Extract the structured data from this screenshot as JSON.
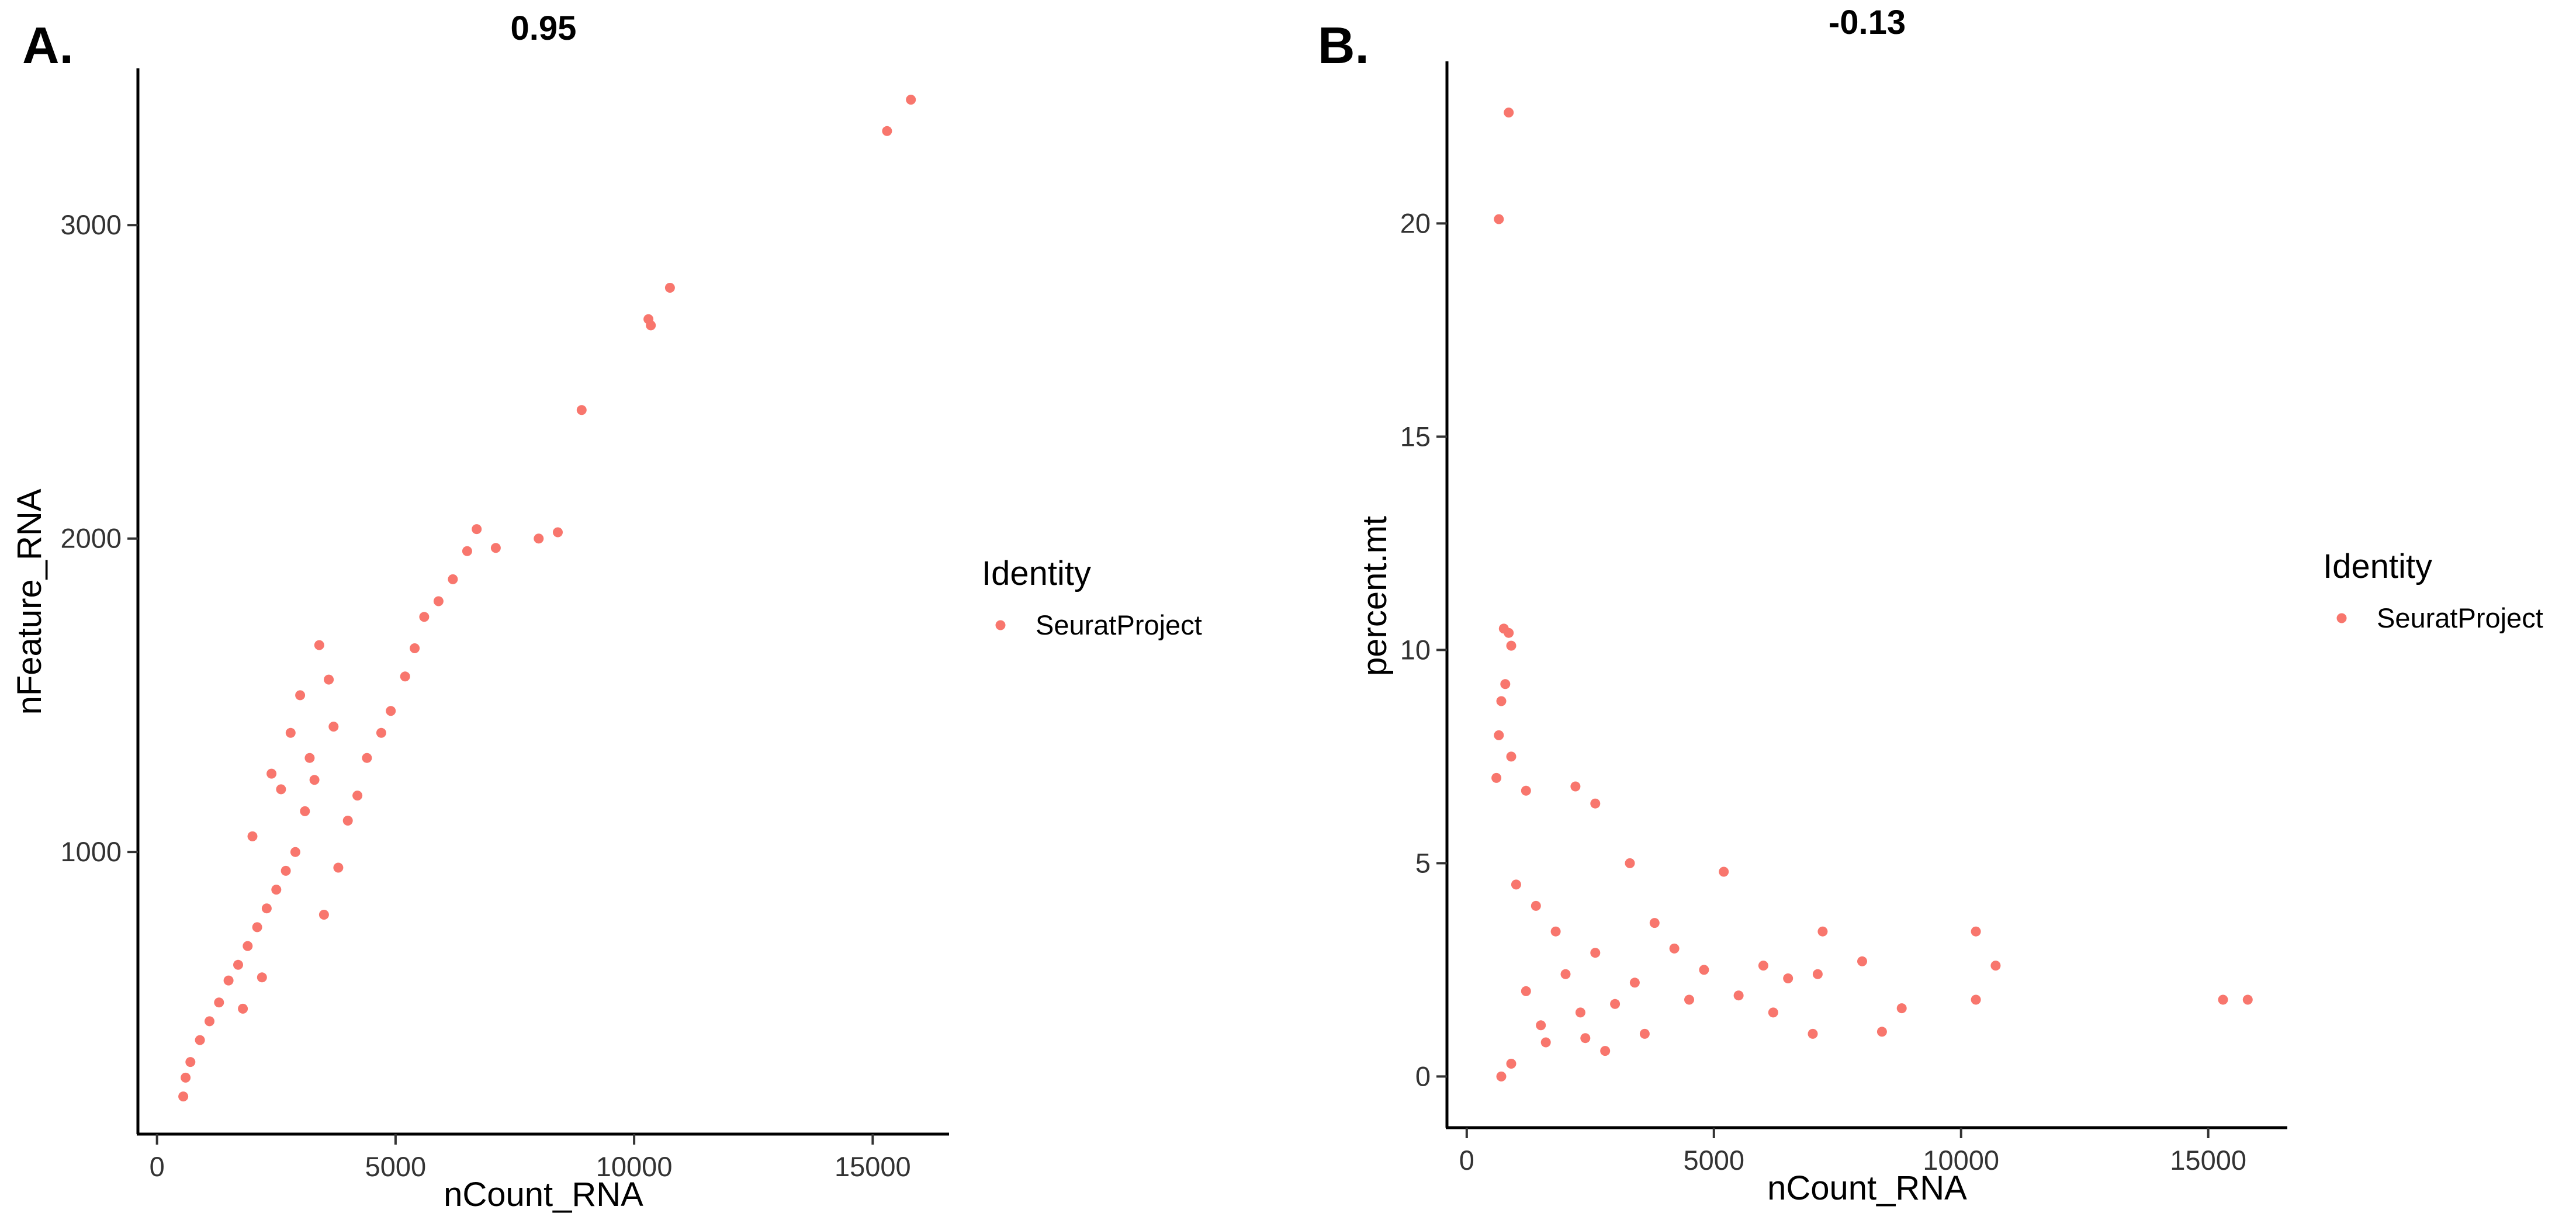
{
  "colors": {
    "point": "#F8766D",
    "axis": "#000000"
  },
  "chart_data": [
    {
      "type": "scatter",
      "panel_label": "A.",
      "title": "0.95",
      "xlabel": "nCount_RNA",
      "ylabel": "nFeature_RNA",
      "xlim": [
        -400,
        16600
      ],
      "ylim": [
        100,
        3500
      ],
      "xticks": [
        0,
        5000,
        10000,
        15000
      ],
      "yticks": [
        1000,
        2000,
        3000
      ],
      "legend": {
        "title": "Identity",
        "entries": [
          "SeuratProject"
        ],
        "placement": "right"
      },
      "series": [
        {
          "name": "SeuratProject",
          "points": [
            [
              15800,
              3400
            ],
            [
              15300,
              3300
            ],
            [
              10750,
              2800
            ],
            [
              10300,
              2700
            ],
            [
              10350,
              2680
            ],
            [
              8900,
              2410
            ],
            [
              8400,
              2020
            ],
            [
              8000,
              2000
            ],
            [
              7100,
              1970
            ],
            [
              6700,
              2030
            ],
            [
              6500,
              1960
            ],
            [
              6200,
              1870
            ],
            [
              5900,
              1800
            ],
            [
              5600,
              1750
            ],
            [
              5400,
              1650
            ],
            [
              5200,
              1560
            ],
            [
              4900,
              1450
            ],
            [
              4700,
              1380
            ],
            [
              4400,
              1300
            ],
            [
              4200,
              1180
            ],
            [
              4000,
              1100
            ],
            [
              3800,
              950
            ],
            [
              3700,
              1400
            ],
            [
              3600,
              1550
            ],
            [
              3400,
              1660
            ],
            [
              3300,
              1230
            ],
            [
              3100,
              1130
            ],
            [
              2900,
              1000
            ],
            [
              2700,
              940
            ],
            [
              2500,
              880
            ],
            [
              2300,
              820
            ],
            [
              2100,
              760
            ],
            [
              1900,
              700
            ],
            [
              1700,
              640
            ],
            [
              1500,
              590
            ],
            [
              1300,
              520
            ],
            [
              1100,
              460
            ],
            [
              900,
              400
            ],
            [
              700,
              330
            ],
            [
              600,
              280
            ],
            [
              550,
              220
            ],
            [
              3000,
              1500
            ],
            [
              2800,
              1380
            ],
            [
              3200,
              1300
            ],
            [
              2600,
              1200
            ],
            [
              2400,
              1250
            ],
            [
              2000,
              1050
            ],
            [
              2200,
              600
            ],
            [
              1800,
              500
            ],
            [
              3500,
              800
            ]
          ]
        }
      ]
    },
    {
      "type": "scatter",
      "panel_label": "B.",
      "title": "-0.13",
      "xlabel": "nCount_RNA",
      "ylabel": "percent.mt",
      "xlim": [
        -400,
        16600
      ],
      "ylim": [
        -1.2,
        23.8
      ],
      "xticks": [
        0,
        5000,
        10000,
        15000
      ],
      "yticks": [
        0,
        5,
        10,
        15,
        20
      ],
      "legend": {
        "title": "Identity",
        "entries": [
          "SeuratProject"
        ],
        "placement": "right"
      },
      "series": [
        {
          "name": "SeuratProject",
          "points": [
            [
              850,
              22.6
            ],
            [
              650,
              20.1
            ],
            [
              750,
              10.5
            ],
            [
              850,
              10.4
            ],
            [
              900,
              10.1
            ],
            [
              780,
              9.2
            ],
            [
              700,
              8.8
            ],
            [
              650,
              8.0
            ],
            [
              900,
              7.5
            ],
            [
              600,
              7.0
            ],
            [
              1200,
              6.7
            ],
            [
              2200,
              6.8
            ],
            [
              2600,
              6.4
            ],
            [
              3300,
              5.0
            ],
            [
              5200,
              4.8
            ],
            [
              10300,
              3.4
            ],
            [
              10700,
              2.6
            ],
            [
              15300,
              1.8
            ],
            [
              15800,
              1.8
            ],
            [
              10300,
              1.8
            ],
            [
              8800,
              1.6
            ],
            [
              8400,
              1.05
            ],
            [
              8000,
              2.7
            ],
            [
              7200,
              3.4
            ],
            [
              7100,
              2.4
            ],
            [
              6500,
              2.3
            ],
            [
              6000,
              2.6
            ],
            [
              5500,
              1.9
            ],
            [
              4800,
              2.5
            ],
            [
              4200,
              3.0
            ],
            [
              3800,
              3.6
            ],
            [
              3400,
              2.2
            ],
            [
              3000,
              1.7
            ],
            [
              2600,
              2.9
            ],
            [
              2300,
              1.5
            ],
            [
              2000,
              2.4
            ],
            [
              1800,
              3.4
            ],
            [
              1500,
              1.2
            ],
            [
              1200,
              2.0
            ],
            [
              900,
              0.3
            ],
            [
              700,
              0.0
            ],
            [
              1000,
              4.5
            ],
            [
              1400,
              4.0
            ],
            [
              2800,
              0.6
            ],
            [
              2400,
              0.9
            ],
            [
              1600,
              0.8
            ],
            [
              3600,
              1.0
            ],
            [
              4500,
              1.8
            ],
            [
              6200,
              1.5
            ],
            [
              7000,
              1.0
            ]
          ]
        }
      ]
    }
  ]
}
